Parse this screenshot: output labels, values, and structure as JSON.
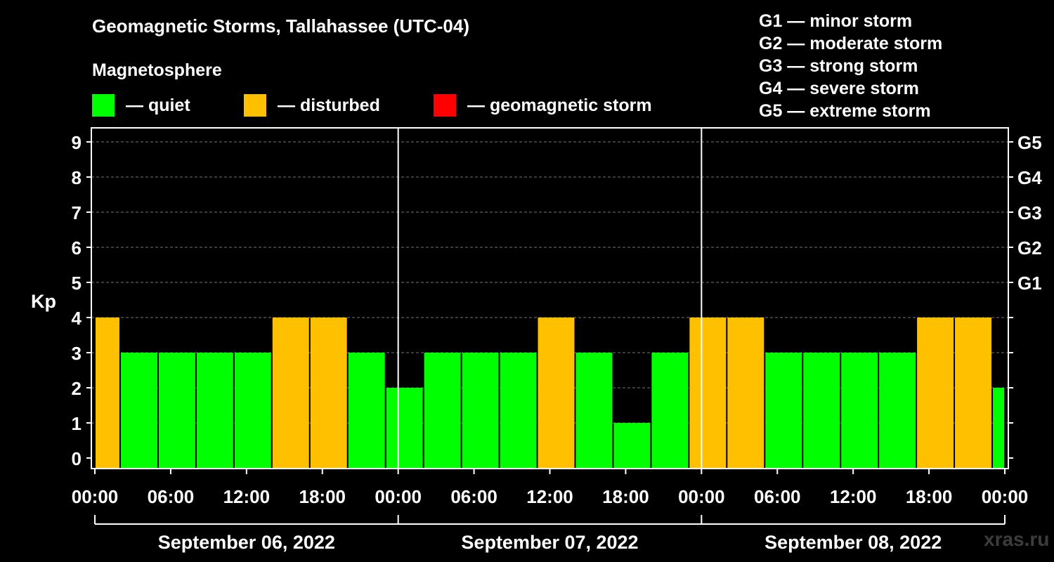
{
  "header": {
    "title": "Geomagnetic Storms, Tallahassee (UTC-04)",
    "subtitle": "Magnetosphere"
  },
  "legend": [
    {
      "label": "— quiet",
      "color": "#00ff00"
    },
    {
      "label": "— disturbed",
      "color": "#ffc000"
    },
    {
      "label": "— geomagnetic storm",
      "color": "#ff0000"
    }
  ],
  "g_legend": [
    "G1 — minor storm",
    "G2 — moderate storm",
    "G3 — strong storm",
    "G4 — severe storm",
    "G5 — extreme storm"
  ],
  "watermark": "xras.ru",
  "chart_data": {
    "type": "bar",
    "ylabel": "Kp",
    "ylim": [
      0,
      9
    ],
    "y_ticks": [
      "0",
      "1",
      "2",
      "3",
      "4",
      "5",
      "6",
      "7",
      "8",
      "9"
    ],
    "right_ticks": [
      {
        "value": 5,
        "label": "G1"
      },
      {
        "value": 6,
        "label": "G2"
      },
      {
        "value": 7,
        "label": "G3"
      },
      {
        "value": 8,
        "label": "G4"
      },
      {
        "value": 9,
        "label": "G5"
      }
    ],
    "x_ticks": [
      "00:00",
      "06:00",
      "12:00",
      "18:00",
      "00:00",
      "06:00",
      "12:00",
      "18:00",
      "00:00",
      "06:00",
      "12:00",
      "18:00",
      "00:00"
    ],
    "days": [
      "September 06, 2022",
      "September 07, 2022",
      "September 08, 2022"
    ],
    "x_hours_range": [
      0,
      72
    ],
    "grid": "dashed horizontal",
    "bars": [
      {
        "start": 0,
        "end": 2,
        "kp": 4
      },
      {
        "start": 2,
        "end": 5,
        "kp": 3
      },
      {
        "start": 5,
        "end": 8,
        "kp": 3
      },
      {
        "start": 8,
        "end": 11,
        "kp": 3
      },
      {
        "start": 11,
        "end": 14,
        "kp": 3
      },
      {
        "start": 14,
        "end": 17,
        "kp": 4
      },
      {
        "start": 17,
        "end": 20,
        "kp": 4
      },
      {
        "start": 20,
        "end": 23,
        "kp": 3
      },
      {
        "start": 23,
        "end": 26,
        "kp": 2
      },
      {
        "start": 26,
        "end": 29,
        "kp": 3
      },
      {
        "start": 29,
        "end": 32,
        "kp": 3
      },
      {
        "start": 32,
        "end": 35,
        "kp": 3
      },
      {
        "start": 35,
        "end": 38,
        "kp": 4
      },
      {
        "start": 38,
        "end": 41,
        "kp": 3
      },
      {
        "start": 41,
        "end": 44,
        "kp": 1
      },
      {
        "start": 44,
        "end": 47,
        "kp": 3
      },
      {
        "start": 47,
        "end": 50,
        "kp": 4
      },
      {
        "start": 50,
        "end": 53,
        "kp": 4
      },
      {
        "start": 53,
        "end": 56,
        "kp": 3
      },
      {
        "start": 56,
        "end": 59,
        "kp": 3
      },
      {
        "start": 59,
        "end": 62,
        "kp": 3
      },
      {
        "start": 62,
        "end": 65,
        "kp": 3
      },
      {
        "start": 65,
        "end": 68,
        "kp": 4
      },
      {
        "start": 68,
        "end": 71,
        "kp": 4
      },
      {
        "start": 71,
        "end": 72,
        "kp": 2
      }
    ],
    "colors": {
      "quiet": "#00ff00",
      "disturbed": "#ffc000",
      "storm": "#ff0000"
    }
  }
}
